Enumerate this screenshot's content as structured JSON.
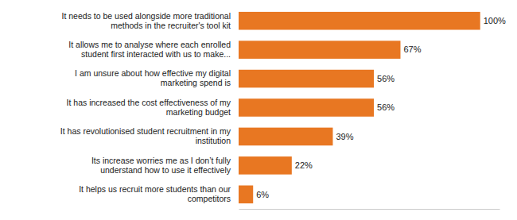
{
  "chart_data": {
    "type": "bar",
    "orientation": "horizontal",
    "categories": [
      "It needs to be used alongside more traditional\nmethods in the recruiter's tool kit",
      "It allows me to analyse where each enrolled\nstudent first interacted with us to make...",
      "I am unsure about how effective my digital\nmarketing spend is",
      "It has increased the cost effectiveness of my\nmarketing budget",
      "It has revolutionised student recruitment in my\ninstitution",
      "Its increase worries me as I don’t fully\nunderstand how to use it effectively",
      "It helps us recruit more students than our\ncompetitors"
    ],
    "values": [
      100,
      67,
      56,
      56,
      39,
      22,
      6
    ],
    "value_labels": [
      "100%",
      "67%",
      "56%",
      "56%",
      "39%",
      "22%",
      "6%"
    ],
    "data_labels": true,
    "color": "#E87722",
    "xlim": [
      0,
      108
    ],
    "tick_labels": "y",
    "grid": false
  }
}
